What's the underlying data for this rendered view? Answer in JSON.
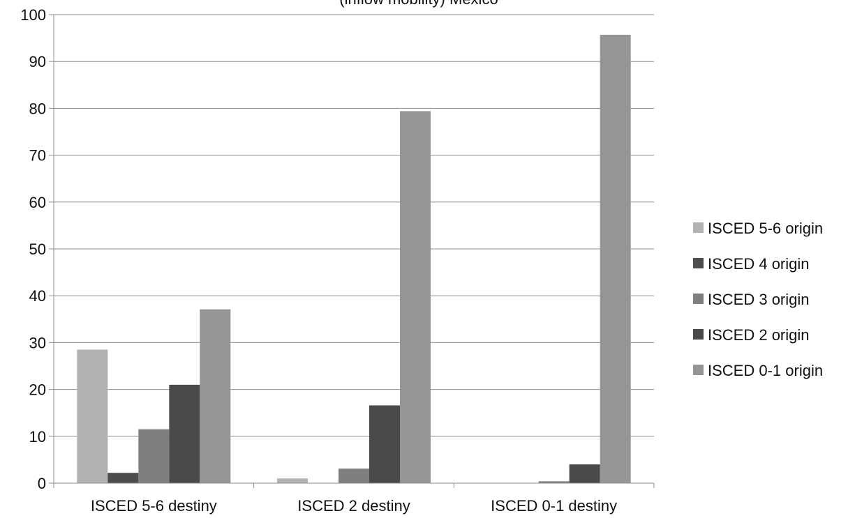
{
  "chart_data": {
    "type": "bar",
    "title": "(inflow mobility) Mexico",
    "categories": [
      "ISCED 5-6 destiny",
      "ISCED 2 destiny",
      "ISCED 0-1 destiny"
    ],
    "series": [
      {
        "name": "ISCED 5-6 origin",
        "color": "#b2b2b2",
        "values": [
          28.5,
          1.0,
          0.0
        ]
      },
      {
        "name": "ISCED 4 origin",
        "color": "#4d4d4d",
        "values": [
          2.2,
          0.0,
          0.0
        ]
      },
      {
        "name": "ISCED 3 origin",
        "color": "#7f7f7f",
        "values": [
          11.5,
          3.1,
          0.4
        ]
      },
      {
        "name": "ISCED 2 origin",
        "color": "#4a4a4a",
        "values": [
          21.0,
          16.6,
          4.0
        ]
      },
      {
        "name": "ISCED 0-1 origin",
        "color": "#959595",
        "values": [
          37.1,
          79.4,
          95.7
        ]
      }
    ],
    "ylim": [
      0,
      100
    ],
    "yticks": [
      "0",
      "10",
      "20",
      "30",
      "40",
      "50",
      "60",
      "70",
      "80",
      "90",
      "100"
    ],
    "grid": true,
    "legend_position": "right"
  }
}
